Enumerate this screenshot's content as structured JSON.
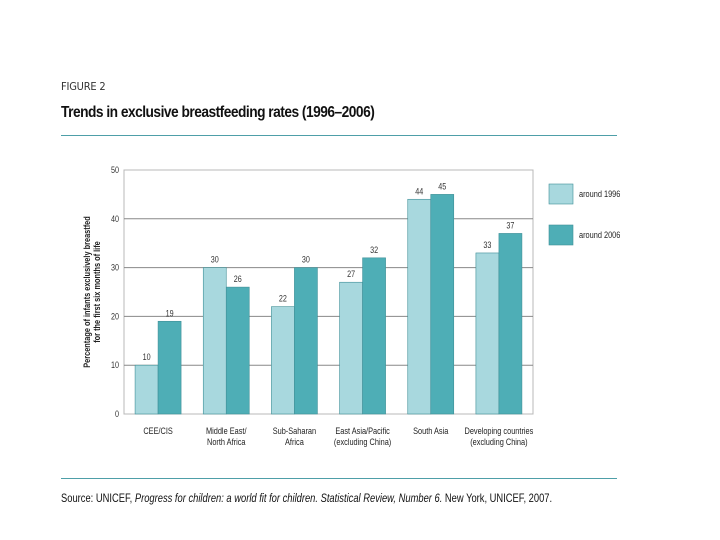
{
  "figure_label": "FIGURE 2",
  "source": {
    "prefix": "Source: UNICEF, ",
    "publication": "Progress for children: a world fit for children. Statistical Review, Number 6.",
    "suffix": " New York, UNICEF, 2007."
  },
  "colors": {
    "series_1996": "#a8d8de",
    "series_2006": "#4eaeb6",
    "bar_stroke": "#3f8f97",
    "grid": "#888888",
    "rule": "#4e9fa8"
  },
  "chart_data": {
    "type": "bar",
    "title": "Trends in exclusive breastfeeding rates (1996–2006)",
    "ylabel_line1": "Percentage of infants exclusively breastfed",
    "ylabel_line2": "for the first six months of life",
    "xlabel": "",
    "ylim": [
      0,
      50
    ],
    "yticks": [
      0,
      10,
      20,
      30,
      40,
      50
    ],
    "grid": true,
    "legend_position": "top-right",
    "categories": [
      [
        "CEE/CIS"
      ],
      [
        "Middle East/",
        "North Africa"
      ],
      [
        "Sub-Saharan",
        "Africa"
      ],
      [
        "East Asia/Pacific",
        "(excluding China)"
      ],
      [
        "South Asia"
      ],
      [
        "Developing countries",
        "(excluding China)"
      ]
    ],
    "series": [
      {
        "name": "around 1996",
        "values": [
          10,
          30,
          22,
          27,
          44,
          33
        ]
      },
      {
        "name": "around 2006",
        "values": [
          19,
          26,
          30,
          32,
          45,
          37
        ]
      }
    ]
  }
}
